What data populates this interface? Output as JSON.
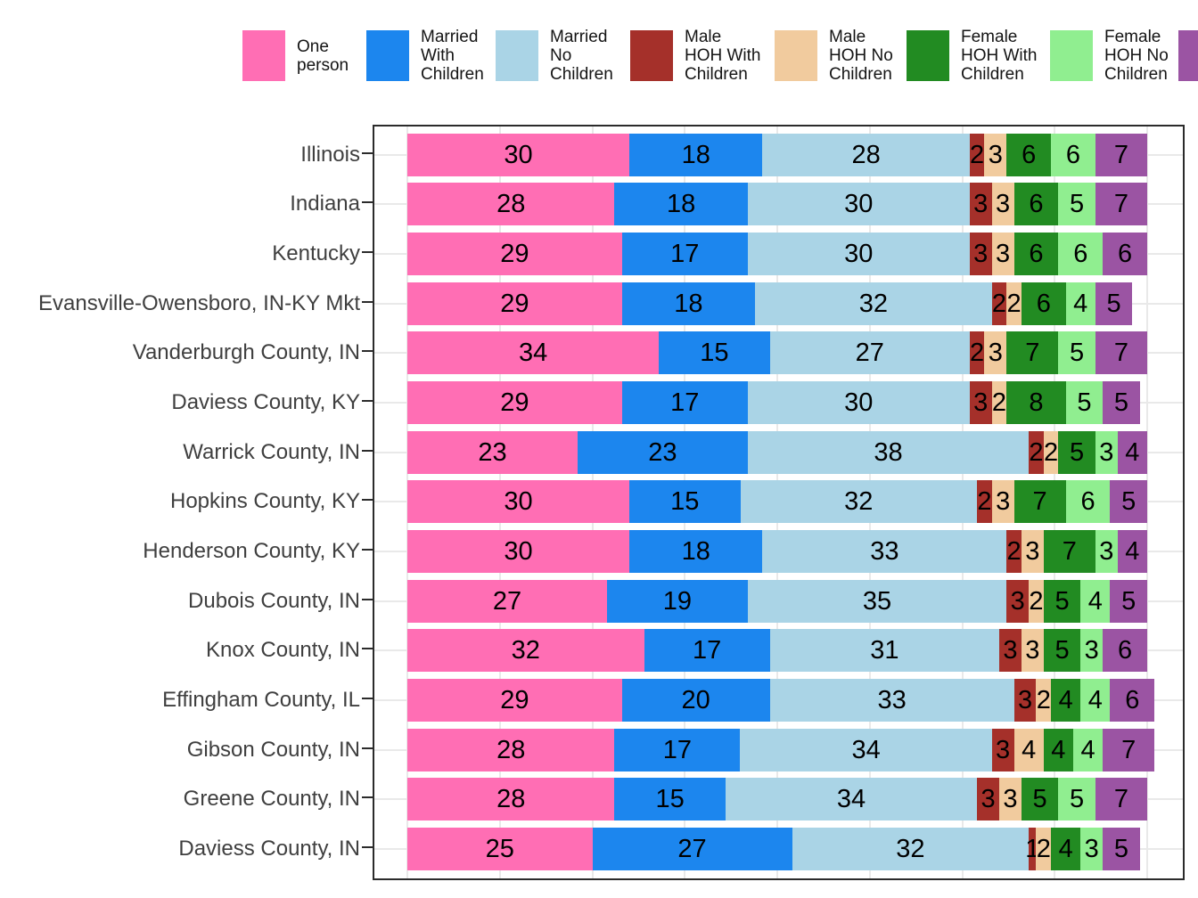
{
  "legend": {
    "items": [
      {
        "label": "One person",
        "lines": [
          "One",
          "person"
        ],
        "color": "#FF6EB4"
      },
      {
        "label": "Married With Children",
        "lines": [
          "Married",
          "With",
          "Children"
        ],
        "color": "#1C86EE"
      },
      {
        "label": "Married No Children",
        "lines": [
          "Married",
          "No",
          "Children"
        ],
        "color": "#AAD4E6"
      },
      {
        "label": "Male HOH With Children",
        "lines": [
          "Male",
          "HOH With",
          "Children"
        ],
        "color": "#A5302A"
      },
      {
        "label": "Male HOH No Children",
        "lines": [
          "Male",
          "HOH No",
          "Children"
        ],
        "color": "#F1CB9E"
      },
      {
        "label": "Female HOH With Children",
        "lines": [
          "Female",
          "HOH With",
          "Children"
        ],
        "color": "#228B22"
      },
      {
        "label": "Female HOH No Children",
        "lines": [
          "Female",
          "HOH No",
          "Children"
        ],
        "color": "#90EE90"
      },
      {
        "label": "",
        "lines": [],
        "color": "#9B54A3"
      }
    ]
  },
  "chart_data": {
    "type": "bar",
    "orientation": "horizontal",
    "stacked": true,
    "xlim": [
      0,
      100
    ],
    "x_gridlines": [
      0,
      12.5,
      25,
      37.5,
      50,
      62.5,
      75,
      87.5,
      100
    ],
    "grid": true,
    "legend_position": "top",
    "value_labels": "inside segments",
    "categories": [
      "Illinois",
      "Indiana",
      "Kentucky",
      "Evansville-Owensboro, IN-KY Mkt",
      "Vanderburgh County, IN",
      "Daviess County, KY",
      "Warrick County, IN",
      "Hopkins County, KY",
      "Henderson County, KY",
      "Dubois County, IN",
      "Knox County, IN",
      "Effingham County, IL",
      "Gibson County, IN",
      "Greene County, IN",
      "Daviess County, IN"
    ],
    "series": [
      {
        "name": "One person",
        "color": "#FF6EB4",
        "values": [
          30,
          28,
          29,
          29,
          34,
          29,
          23,
          30,
          30,
          27,
          32,
          29,
          28,
          28,
          25
        ]
      },
      {
        "name": "Married With Children",
        "color": "#1C86EE",
        "values": [
          18,
          18,
          17,
          18,
          15,
          17,
          23,
          15,
          18,
          19,
          17,
          20,
          17,
          15,
          27
        ]
      },
      {
        "name": "Married No Children",
        "color": "#AAD4E6",
        "values": [
          28,
          30,
          30,
          32,
          27,
          30,
          38,
          32,
          33,
          35,
          31,
          33,
          34,
          34,
          32
        ]
      },
      {
        "name": "Male HOH With Children",
        "color": "#A5302A",
        "values": [
          2,
          3,
          3,
          2,
          2,
          3,
          2,
          2,
          2,
          3,
          3,
          3,
          3,
          3,
          1
        ]
      },
      {
        "name": "Male HOH No Children",
        "color": "#F1CB9E",
        "values": [
          3,
          3,
          3,
          2,
          3,
          2,
          2,
          3,
          3,
          2,
          3,
          2,
          4,
          3,
          2
        ]
      },
      {
        "name": "Female HOH With Children",
        "color": "#228B22",
        "values": [
          6,
          6,
          6,
          6,
          7,
          8,
          5,
          7,
          7,
          5,
          5,
          4,
          4,
          5,
          4
        ]
      },
      {
        "name": "Female HOH No Children",
        "color": "#90EE90",
        "values": [
          6,
          5,
          6,
          4,
          5,
          5,
          3,
          6,
          3,
          4,
          3,
          4,
          4,
          5,
          3
        ]
      },
      {
        "name": "",
        "color": "#9B54A3",
        "values": [
          7,
          7,
          6,
          5,
          7,
          5,
          4,
          5,
          4,
          5,
          6,
          6,
          7,
          7,
          5
        ]
      }
    ]
  }
}
